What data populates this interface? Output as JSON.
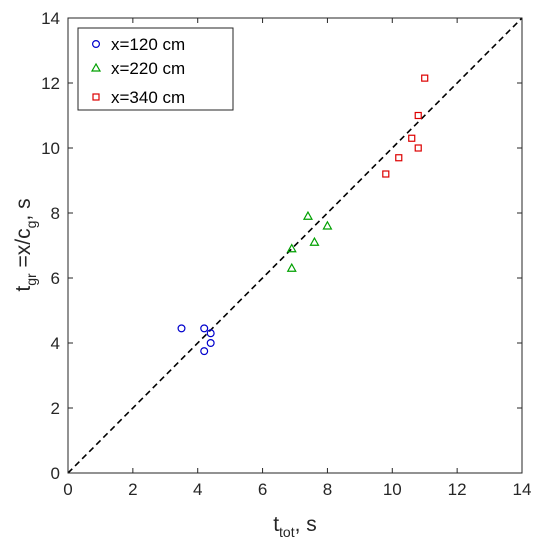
{
  "chart_data": {
    "type": "scatter",
    "x_label": {
      "main": "t",
      "sub": "tot",
      "suffix": ", s"
    },
    "y_label": {
      "main": "t",
      "sub1": "gr",
      "mid": " =x/c",
      "sub2": "g",
      "suffix": ", s"
    },
    "xlim": [
      0,
      14
    ],
    "ylim": [
      0,
      14
    ],
    "x_ticks": [
      0,
      2,
      4,
      6,
      8,
      10,
      12,
      14
    ],
    "y_ticks": [
      0,
      2,
      4,
      6,
      8,
      10,
      12,
      14
    ],
    "grid": false,
    "legend_position": "top-left",
    "reference_line": {
      "style": "dashed",
      "color": "#000000",
      "from": [
        0,
        0
      ],
      "to": [
        14,
        14
      ]
    },
    "series": [
      {
        "name": "x=120 cm",
        "marker": "circle",
        "color": "#0000cc",
        "points": [
          [
            3.5,
            4.45
          ],
          [
            4.2,
            4.45
          ],
          [
            4.4,
            4.3
          ],
          [
            4.4,
            4.0
          ],
          [
            4.2,
            3.75
          ]
        ]
      },
      {
        "name": "x=220 cm",
        "marker": "triangle",
        "color": "#00a000",
        "points": [
          [
            6.9,
            6.9
          ],
          [
            6.9,
            6.3
          ],
          [
            7.4,
            7.9
          ],
          [
            7.6,
            7.1
          ],
          [
            8.0,
            7.6
          ]
        ]
      },
      {
        "name": "x=340 cm",
        "marker": "square",
        "color": "#dd0000",
        "points": [
          [
            9.8,
            9.2
          ],
          [
            10.2,
            9.7
          ],
          [
            10.6,
            10.3
          ],
          [
            10.8,
            10.0
          ],
          [
            10.8,
            11.0
          ],
          [
            11.0,
            12.15
          ]
        ]
      }
    ]
  }
}
